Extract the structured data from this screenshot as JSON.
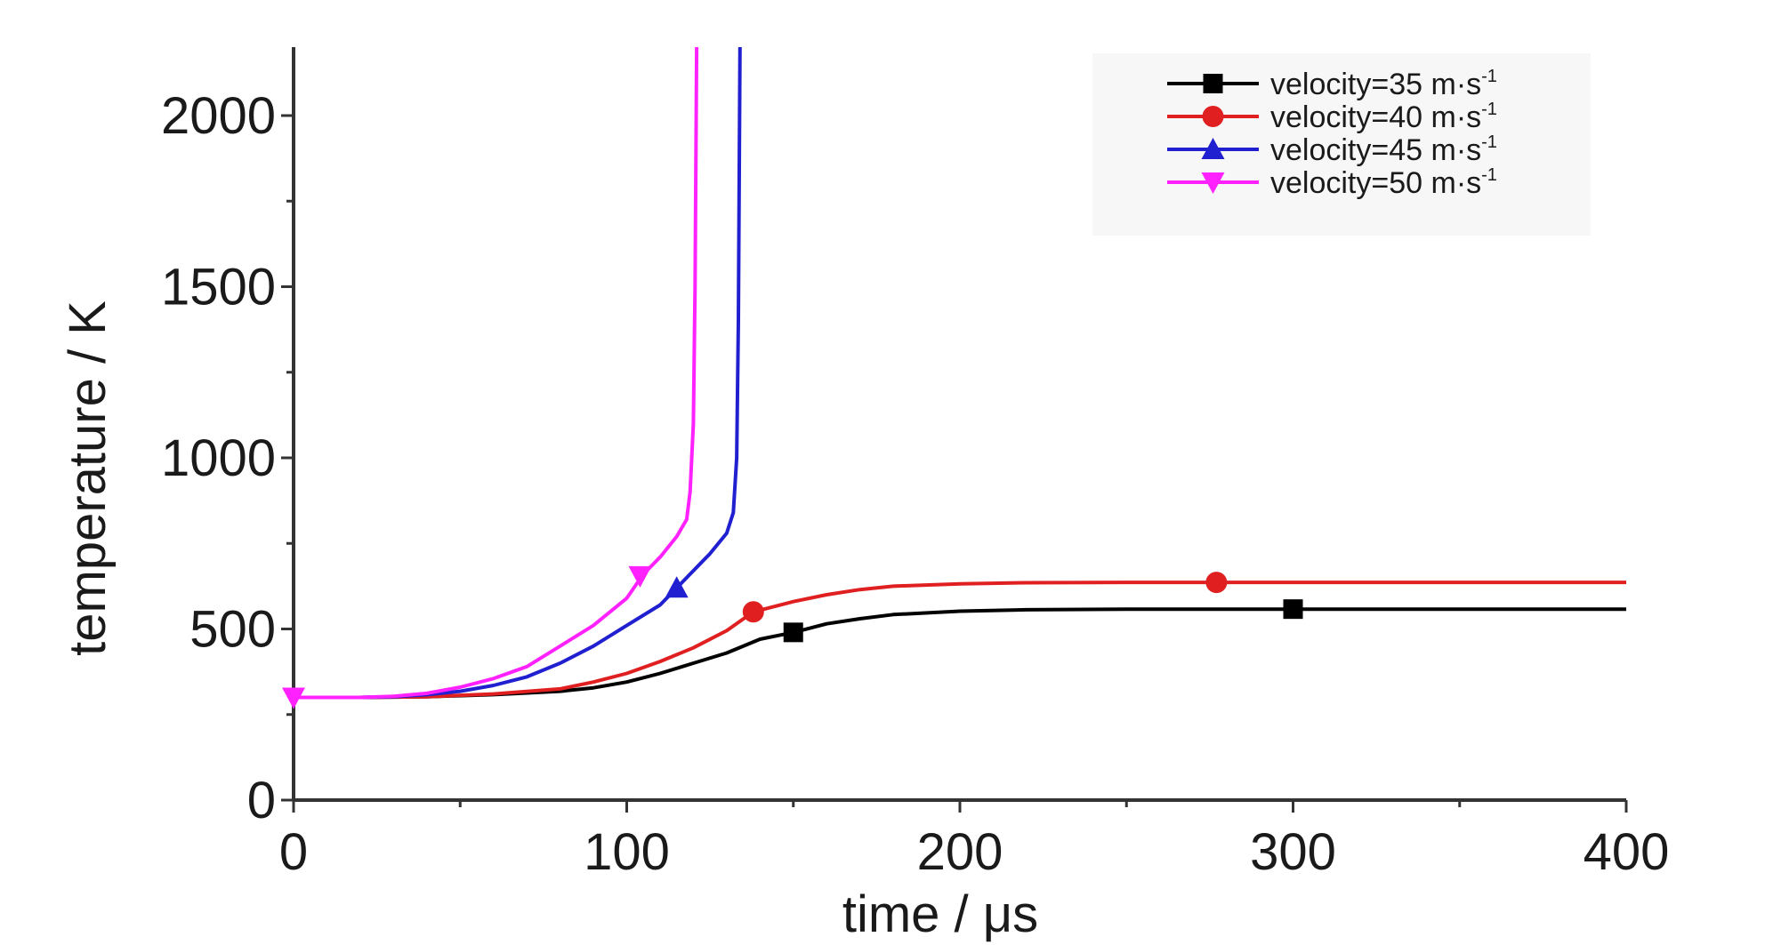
{
  "chart_data": {
    "type": "line",
    "xlabel": "time / μs",
    "ylabel": "temperature / K",
    "xlim": [
      0,
      400
    ],
    "ylim": [
      0,
      2200
    ],
    "x_ticks": [
      0,
      100,
      200,
      300,
      400
    ],
    "x_tick_labels": [
      "0",
      "100",
      "200",
      "300",
      "400"
    ],
    "y_ticks": [
      0,
      500,
      1000,
      1500,
      2000
    ],
    "y_tick_labels": [
      "0",
      "500",
      "1000",
      "1500",
      "2000"
    ],
    "grid": false,
    "legend_position": "top-right",
    "series": [
      {
        "name": "velocity=35 m·s",
        "superscript": "-1",
        "color": "#000000",
        "marker": "square",
        "points": [
          [
            0,
            300
          ],
          [
            20,
            300
          ],
          [
            40,
            302
          ],
          [
            60,
            308
          ],
          [
            80,
            318
          ],
          [
            90,
            328
          ],
          [
            100,
            345
          ],
          [
            110,
            370
          ],
          [
            120,
            400
          ],
          [
            130,
            430
          ],
          [
            140,
            470
          ],
          [
            150,
            490
          ],
          [
            160,
            515
          ],
          [
            170,
            530
          ],
          [
            180,
            542
          ],
          [
            200,
            552
          ],
          [
            220,
            556
          ],
          [
            250,
            558
          ],
          [
            300,
            558
          ],
          [
            350,
            558
          ],
          [
            400,
            558
          ]
        ],
        "marker_points": [
          [
            150,
            490
          ],
          [
            300,
            558
          ]
        ]
      },
      {
        "name": "velocity=40 m·s",
        "superscript": "-1",
        "color": "#e02020",
        "marker": "circle",
        "points": [
          [
            0,
            300
          ],
          [
            20,
            300
          ],
          [
            40,
            302
          ],
          [
            60,
            310
          ],
          [
            80,
            325
          ],
          [
            90,
            345
          ],
          [
            100,
            370
          ],
          [
            110,
            405
          ],
          [
            120,
            445
          ],
          [
            130,
            495
          ],
          [
            138,
            550
          ],
          [
            150,
            580
          ],
          [
            160,
            600
          ],
          [
            170,
            615
          ],
          [
            180,
            625
          ],
          [
            200,
            632
          ],
          [
            220,
            635
          ],
          [
            250,
            636
          ],
          [
            277,
            636
          ],
          [
            300,
            636
          ],
          [
            350,
            636
          ],
          [
            400,
            636
          ]
        ],
        "marker_points": [
          [
            138,
            550
          ],
          [
            277,
            636
          ]
        ]
      },
      {
        "name": "velocity=45 m·s",
        "superscript": "-1",
        "color": "#2020d0",
        "marker": "triangle-up",
        "points": [
          [
            0,
            300
          ],
          [
            20,
            300
          ],
          [
            30,
            302
          ],
          [
            40,
            308
          ],
          [
            50,
            318
          ],
          [
            60,
            335
          ],
          [
            70,
            360
          ],
          [
            80,
            400
          ],
          [
            90,
            450
          ],
          [
            100,
            510
          ],
          [
            110,
            570
          ],
          [
            115,
            620
          ],
          [
            120,
            670
          ],
          [
            125,
            720
          ],
          [
            130,
            780
          ],
          [
            132,
            840
          ],
          [
            133,
            1000
          ],
          [
            133.5,
            1400
          ],
          [
            134,
            2200
          ]
        ],
        "marker_points": [
          [
            115,
            620
          ]
        ]
      },
      {
        "name": "velocity=50 m·s",
        "superscript": "-1",
        "color": "#ff22ff",
        "marker": "triangle-down",
        "points": [
          [
            0,
            300
          ],
          [
            20,
            300
          ],
          [
            30,
            303
          ],
          [
            40,
            312
          ],
          [
            50,
            330
          ],
          [
            60,
            355
          ],
          [
            70,
            390
          ],
          [
            80,
            450
          ],
          [
            90,
            510
          ],
          [
            100,
            590
          ],
          [
            105,
            660
          ],
          [
            110,
            710
          ],
          [
            115,
            770
          ],
          [
            118,
            820
          ],
          [
            119,
            900
          ],
          [
            120,
            1100
          ],
          [
            120.5,
            1500
          ],
          [
            121,
            2200
          ]
        ],
        "marker_points": [
          [
            0,
            300
          ],
          [
            104,
            655
          ]
        ]
      }
    ]
  }
}
